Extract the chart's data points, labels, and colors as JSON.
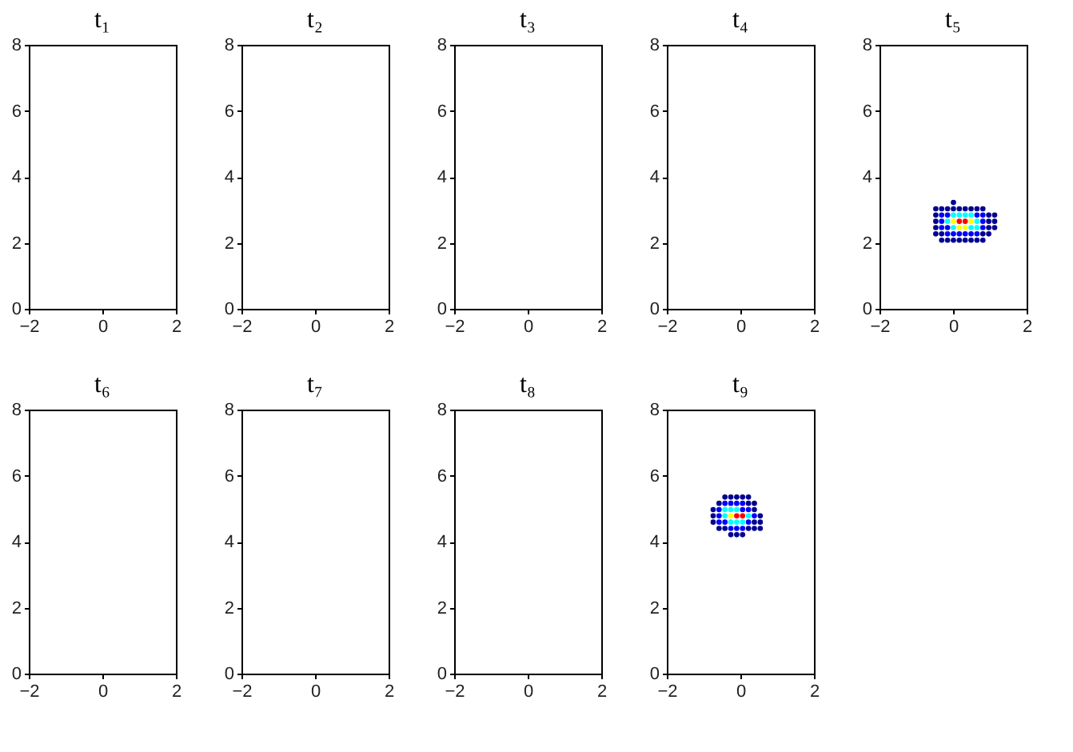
{
  "chart_data": [
    {
      "type": "scatter",
      "title": "t₁",
      "xlim": [
        -2,
        2
      ],
      "ylim": [
        0,
        8
      ],
      "xticks": [
        -2,
        0,
        2
      ],
      "yticks": [
        0,
        2,
        4,
        6,
        8
      ],
      "grid": false,
      "marker": "circle"
    },
    {
      "type": "scatter",
      "title": "t₂",
      "xlim": [
        -2,
        2
      ],
      "ylim": [
        0,
        8
      ],
      "xticks": [
        -2,
        0,
        2
      ],
      "yticks": [
        0,
        2,
        4,
        6,
        8
      ],
      "grid": false,
      "marker": "circle"
    },
    {
      "type": "scatter",
      "title": "t₃",
      "xlim": [
        -2,
        2
      ],
      "ylim": [
        0,
        8
      ],
      "xticks": [
        -2,
        0,
        2
      ],
      "yticks": [
        0,
        2,
        4,
        6,
        8
      ],
      "grid": false,
      "marker": "circle"
    },
    {
      "type": "scatter",
      "title": "t₄",
      "xlim": [
        -2,
        2
      ],
      "ylim": [
        0,
        8
      ],
      "xticks": [
        -2,
        0,
        2
      ],
      "yticks": [
        0,
        2,
        4,
        6,
        8
      ],
      "grid": false,
      "marker": "circle"
    },
    {
      "type": "scatter",
      "title": "t₅",
      "xlim": [
        -2,
        2
      ],
      "ylim": [
        0,
        8
      ],
      "xticks": [
        -2,
        0,
        2
      ],
      "yticks": [
        0,
        2,
        4,
        6,
        8
      ],
      "grid": false,
      "marker": "circle",
      "series": [
        {
          "color": "#00008f",
          "x": [
            -0.47,
            -0.31,
            -0.15,
            0.01,
            0.17,
            0.33,
            0.49,
            0.65,
            0.81,
            -0.47,
            0.97,
            1.13,
            -0.47,
            0.97,
            1.13,
            -0.47,
            0.97,
            1.13,
            -0.47,
            -0.31,
            0.81,
            0.97,
            -0.31,
            -0.15,
            0.01,
            0.17,
            0.33,
            0.49,
            0.65,
            0.81,
            0.01
          ],
          "values": [
            3.03,
            3.03,
            3.03,
            3.03,
            3.03,
            3.03,
            3.03,
            3.03,
            3.03,
            2.84,
            2.84,
            2.84,
            2.65,
            2.65,
            2.65,
            2.46,
            2.46,
            2.46,
            2.27,
            2.27,
            2.27,
            2.27,
            2.08,
            2.08,
            2.08,
            2.08,
            2.08,
            2.08,
            2.08,
            2.08,
            3.22
          ]
        },
        {
          "color": "#0000ff",
          "x": [
            -0.31,
            -0.15,
            0.65,
            0.81,
            -0.31,
            0.81,
            -0.31,
            -0.15,
            0.81,
            -0.15,
            0.01,
            0.17,
            0.33,
            0.49,
            0.65
          ],
          "values": [
            2.84,
            2.84,
            2.84,
            2.84,
            2.65,
            2.65,
            2.46,
            2.46,
            2.46,
            2.27,
            2.27,
            2.27,
            2.27,
            2.27,
            2.27
          ]
        },
        {
          "color": "#00ffff",
          "x": [
            0.01,
            0.17,
            0.33,
            0.49,
            -0.15,
            0.65,
            0.01,
            0.49,
            0.65
          ],
          "values": [
            2.84,
            2.84,
            2.84,
            2.84,
            2.65,
            2.65,
            2.46,
            2.46,
            2.46
          ]
        },
        {
          "color": "#ffff00",
          "x": [
            0.01,
            0.49,
            0.17,
            0.33
          ],
          "values": [
            2.65,
            2.65,
            2.46,
            2.46
          ]
        },
        {
          "color": "#ff0000",
          "x": [
            0.17,
            0.33
          ],
          "values": [
            2.65,
            2.65
          ]
        }
      ]
    },
    {
      "type": "scatter",
      "title": "t₆",
      "xlim": [
        -2,
        2
      ],
      "ylim": [
        0,
        8
      ],
      "xticks": [
        -2,
        0,
        2
      ],
      "yticks": [
        0,
        2,
        4,
        6,
        8
      ],
      "grid": false,
      "marker": "circle"
    },
    {
      "type": "scatter",
      "title": "t₇",
      "xlim": [
        -2,
        2
      ],
      "ylim": [
        0,
        8
      ],
      "xticks": [
        -2,
        0,
        2
      ],
      "yticks": [
        0,
        2,
        4,
        6,
        8
      ],
      "grid": false,
      "marker": "circle"
    },
    {
      "type": "scatter",
      "title": "t₈",
      "xlim": [
        -2,
        2
      ],
      "ylim": [
        0,
        8
      ],
      "xticks": [
        -2,
        0,
        2
      ],
      "yticks": [
        0,
        2,
        4,
        6,
        8
      ],
      "grid": false,
      "marker": "circle"
    },
    {
      "type": "scatter",
      "title": "t₉",
      "xlim": [
        -2,
        2
      ],
      "ylim": [
        0,
        8
      ],
      "xticks": [
        -2,
        0,
        2
      ],
      "yticks": [
        0,
        2,
        4,
        6,
        8
      ],
      "grid": false,
      "marker": "circle",
      "series": [
        {
          "color": "#00008f",
          "x": [
            -0.42,
            -0.26,
            -0.1,
            0.06,
            0.22,
            -0.58,
            0.22,
            0.38,
            -0.74,
            0.38,
            -0.74,
            0.54,
            -0.74,
            0.38,
            0.54,
            -0.58,
            -0.42,
            0.22,
            0.38,
            0.54,
            -0.26,
            -0.1,
            0.06
          ],
          "values": [
            5.35,
            5.35,
            5.35,
            5.35,
            5.35,
            5.16,
            5.16,
            5.16,
            4.97,
            4.97,
            4.78,
            4.78,
            4.59,
            4.59,
            4.59,
            4.4,
            4.4,
            4.4,
            4.4,
            4.4,
            4.21,
            4.21,
            4.21
          ]
        },
        {
          "color": "#0000ff",
          "x": [
            -0.42,
            -0.26,
            -0.1,
            0.06,
            -0.58,
            0.06,
            0.22,
            -0.58,
            0.38,
            -0.58,
            -0.42,
            0.22,
            -0.26,
            -0.1,
            0.06
          ],
          "values": [
            5.16,
            5.16,
            5.16,
            5.16,
            4.97,
            4.97,
            4.97,
            4.78,
            4.78,
            4.59,
            4.59,
            4.59,
            4.4,
            4.4,
            4.4
          ]
        },
        {
          "color": "#00ffff",
          "x": [
            -0.42,
            -0.26,
            -0.1,
            -0.42,
            0.22,
            -0.26,
            -0.1,
            0.06
          ],
          "values": [
            4.97,
            4.97,
            4.97,
            4.78,
            4.78,
            4.59,
            4.59,
            4.59
          ]
        },
        {
          "color": "#ffff00",
          "x": [
            -0.26
          ],
          "values": [
            4.78
          ]
        },
        {
          "color": "#ff0000",
          "x": [
            -0.1,
            0.06
          ],
          "values": [
            4.78,
            4.78
          ]
        }
      ]
    }
  ]
}
